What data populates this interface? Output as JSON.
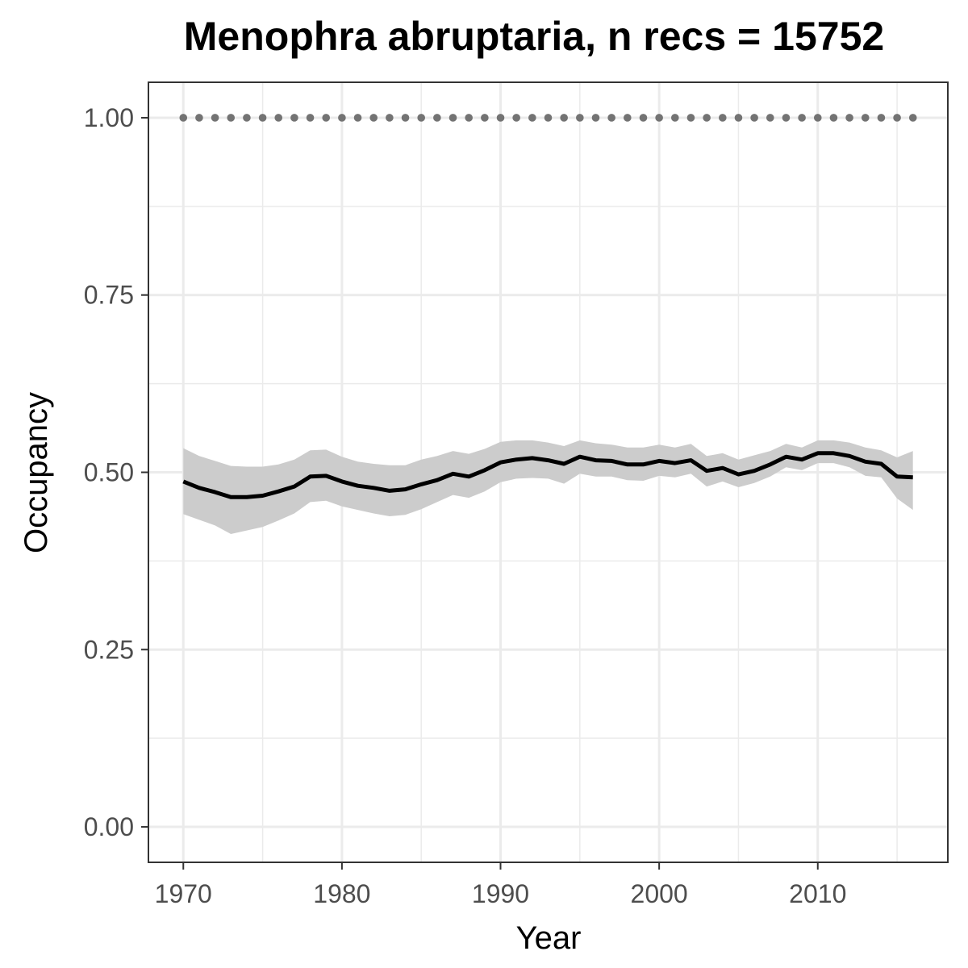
{
  "chart_data": {
    "type": "line",
    "title": "Menophra abruptaria, n recs = 15752",
    "xlabel": "Year",
    "ylabel": "Occupancy",
    "xlim": [
      1967.8,
      2018.2
    ],
    "ylim": [
      -0.05,
      1.05
    ],
    "x_ticks": [
      "1970",
      "1980",
      "1990",
      "2000",
      "2010"
    ],
    "y_ticks": [
      "0.00",
      "0.25",
      "0.50",
      "0.75",
      "1.00"
    ],
    "grid": true,
    "colors": {
      "line": "#000000",
      "ribbon": "#cccccc",
      "dots": "#737373",
      "grid": "#ebebeb",
      "panel_border": "#333333",
      "tick_text": "#4d4d4d"
    },
    "x": [
      1970,
      1971,
      1972,
      1973,
      1974,
      1975,
      1976,
      1977,
      1978,
      1979,
      1980,
      1981,
      1982,
      1983,
      1984,
      1985,
      1986,
      1987,
      1988,
      1989,
      1990,
      1991,
      1992,
      1993,
      1994,
      1995,
      1996,
      1997,
      1998,
      1999,
      2000,
      2001,
      2002,
      2003,
      2004,
      2005,
      2006,
      2007,
      2008,
      2009,
      2010,
      2011,
      2012,
      2013,
      2014,
      2015,
      2016
    ],
    "series": [
      {
        "values": [
          0.487,
          0.478,
          0.472,
          0.465,
          0.465,
          0.467,
          0.473,
          0.48,
          0.494,
          0.495,
          0.487,
          0.481,
          0.478,
          0.474,
          0.476,
          0.483,
          0.489,
          0.498,
          0.494,
          0.503,
          0.514,
          0.518,
          0.52,
          0.517,
          0.512,
          0.522,
          0.517,
          0.516,
          0.511,
          0.511,
          0.516,
          0.513,
          0.517,
          0.502,
          0.506,
          0.497,
          0.502,
          0.511,
          0.522,
          0.518,
          0.527,
          0.527,
          0.523,
          0.515,
          0.512,
          0.494,
          0.493
        ],
        "lower": [
          0.441,
          0.433,
          0.425,
          0.413,
          0.418,
          0.423,
          0.432,
          0.442,
          0.458,
          0.46,
          0.452,
          0.447,
          0.442,
          0.438,
          0.44,
          0.448,
          0.458,
          0.468,
          0.464,
          0.473,
          0.486,
          0.491,
          0.492,
          0.491,
          0.484,
          0.498,
          0.494,
          0.494,
          0.489,
          0.488,
          0.495,
          0.493,
          0.498,
          0.48,
          0.487,
          0.479,
          0.485,
          0.494,
          0.507,
          0.503,
          0.513,
          0.513,
          0.507,
          0.495,
          0.493,
          0.463,
          0.447
        ],
        "upper": [
          0.534,
          0.523,
          0.516,
          0.509,
          0.508,
          0.508,
          0.511,
          0.518,
          0.531,
          0.532,
          0.522,
          0.515,
          0.512,
          0.51,
          0.51,
          0.518,
          0.523,
          0.53,
          0.526,
          0.533,
          0.543,
          0.545,
          0.545,
          0.542,
          0.537,
          0.545,
          0.541,
          0.539,
          0.535,
          0.535,
          0.539,
          0.535,
          0.54,
          0.523,
          0.527,
          0.518,
          0.524,
          0.53,
          0.54,
          0.535,
          0.545,
          0.545,
          0.542,
          0.535,
          0.531,
          0.521,
          0.53
        ]
      },
      {
        "style": "dotted",
        "values": [
          1,
          1,
          1,
          1,
          1,
          1,
          1,
          1,
          1,
          1,
          1,
          1,
          1,
          1,
          1,
          1,
          1,
          1,
          1,
          1,
          1,
          1,
          1,
          1,
          1,
          1,
          1,
          1,
          1,
          1,
          1,
          1,
          1,
          1,
          1,
          1,
          1,
          1,
          1,
          1,
          1,
          1,
          1,
          1,
          1,
          1,
          1
        ]
      }
    ]
  }
}
